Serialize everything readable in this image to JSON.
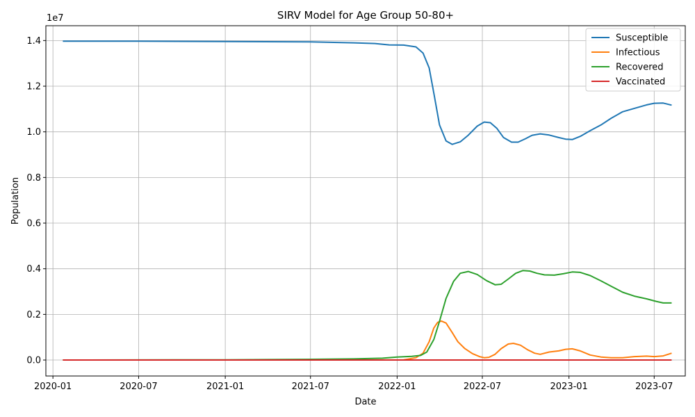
{
  "chart_data": {
    "type": "line",
    "title": "SIRV Model for Age Group 50-80+",
    "xlabel": "Date",
    "ylabel": "Population",
    "y_multiplier": "1e7",
    "xlim": [
      "2019-12-17",
      "2023-09-05"
    ],
    "ylim": [
      -0.07,
      1.465
    ],
    "x_ticks": [
      "2020-01",
      "2020-07",
      "2021-01",
      "2021-07",
      "2022-01",
      "2022-07",
      "2023-01",
      "2023-07"
    ],
    "x_tick_dates": [
      "2020-01-01",
      "2020-07-01",
      "2021-01-01",
      "2021-07-01",
      "2022-01-01",
      "2022-07-01",
      "2023-01-01",
      "2023-07-01"
    ],
    "y_ticks": [
      "0.0",
      "0.2",
      "0.4",
      "0.6",
      "0.8",
      "1.0",
      "1.2",
      "1.4"
    ],
    "y_tick_values": [
      0,
      0.2,
      0.4,
      0.6,
      0.8,
      1.0,
      1.2,
      1.4
    ],
    "grid": true,
    "legend_position": "top-right",
    "series": [
      {
        "name": "Susceptible",
        "color": "#1f77b4",
        "points": [
          [
            "2020-01-22",
            1.397
          ],
          [
            "2020-07-01",
            1.397
          ],
          [
            "2021-01-01",
            1.396
          ],
          [
            "2021-07-01",
            1.394
          ],
          [
            "2021-10-01",
            1.39
          ],
          [
            "2021-11-15",
            1.387
          ],
          [
            "2021-12-15",
            1.381
          ],
          [
            "2022-01-15",
            1.38
          ],
          [
            "2022-02-10",
            1.372
          ],
          [
            "2022-02-25",
            1.345
          ],
          [
            "2022-03-10",
            1.28
          ],
          [
            "2022-03-20",
            1.17
          ],
          [
            "2022-04-01",
            1.03
          ],
          [
            "2022-04-15",
            0.96
          ],
          [
            "2022-04-28",
            0.945
          ],
          [
            "2022-05-15",
            0.956
          ],
          [
            "2022-06-01",
            0.985
          ],
          [
            "2022-06-20",
            1.025
          ],
          [
            "2022-07-05",
            1.043
          ],
          [
            "2022-07-18",
            1.04
          ],
          [
            "2022-08-01",
            1.015
          ],
          [
            "2022-08-15",
            0.975
          ],
          [
            "2022-09-01",
            0.955
          ],
          [
            "2022-09-15",
            0.955
          ],
          [
            "2022-10-01",
            0.97
          ],
          [
            "2022-10-15",
            0.985
          ],
          [
            "2022-11-01",
            0.991
          ],
          [
            "2022-11-20",
            0.986
          ],
          [
            "2022-12-10",
            0.975
          ],
          [
            "2022-12-25",
            0.968
          ],
          [
            "2023-01-08",
            0.966
          ],
          [
            "2023-01-25",
            0.98
          ],
          [
            "2023-02-15",
            1.005
          ],
          [
            "2023-03-10",
            1.03
          ],
          [
            "2023-04-01",
            1.06
          ],
          [
            "2023-04-25",
            1.088
          ],
          [
            "2023-05-20",
            1.103
          ],
          [
            "2023-06-15",
            1.118
          ],
          [
            "2023-07-01",
            1.125
          ],
          [
            "2023-07-20",
            1.126
          ],
          [
            "2023-08-07",
            1.117
          ]
        ]
      },
      {
        "name": "Infectious",
        "color": "#ff7f0e",
        "points": [
          [
            "2020-01-22",
            0.0
          ],
          [
            "2021-07-01",
            0.0
          ],
          [
            "2022-01-15",
            0.001
          ],
          [
            "2022-02-10",
            0.01
          ],
          [
            "2022-02-25",
            0.03
          ],
          [
            "2022-03-10",
            0.08
          ],
          [
            "2022-03-20",
            0.14
          ],
          [
            "2022-03-28",
            0.165
          ],
          [
            "2022-04-05",
            0.171
          ],
          [
            "2022-04-15",
            0.162
          ],
          [
            "2022-04-28",
            0.12
          ],
          [
            "2022-05-10",
            0.08
          ],
          [
            "2022-05-25",
            0.05
          ],
          [
            "2022-06-10",
            0.028
          ],
          [
            "2022-06-25",
            0.015
          ],
          [
            "2022-07-05",
            0.01
          ],
          [
            "2022-07-15",
            0.012
          ],
          [
            "2022-07-28",
            0.025
          ],
          [
            "2022-08-10",
            0.05
          ],
          [
            "2022-08-25",
            0.07
          ],
          [
            "2022-09-05",
            0.073
          ],
          [
            "2022-09-20",
            0.065
          ],
          [
            "2022-10-05",
            0.045
          ],
          [
            "2022-10-20",
            0.03
          ],
          [
            "2022-11-01",
            0.025
          ],
          [
            "2022-11-20",
            0.035
          ],
          [
            "2022-12-10",
            0.04
          ],
          [
            "2022-12-25",
            0.047
          ],
          [
            "2023-01-08",
            0.049
          ],
          [
            "2023-01-25",
            0.04
          ],
          [
            "2023-02-15",
            0.022
          ],
          [
            "2023-03-10",
            0.013
          ],
          [
            "2023-04-01",
            0.01
          ],
          [
            "2023-04-25",
            0.01
          ],
          [
            "2023-05-20",
            0.015
          ],
          [
            "2023-06-15",
            0.017
          ],
          [
            "2023-07-01",
            0.015
          ],
          [
            "2023-07-20",
            0.018
          ],
          [
            "2023-08-07",
            0.03
          ]
        ]
      },
      {
        "name": "Recovered",
        "color": "#2ca02c",
        "points": [
          [
            "2020-01-22",
            0.0
          ],
          [
            "2021-01-01",
            0.001
          ],
          [
            "2021-07-01",
            0.003
          ],
          [
            "2021-10-01",
            0.005
          ],
          [
            "2021-12-01",
            0.008
          ],
          [
            "2022-01-01",
            0.013
          ],
          [
            "2022-02-01",
            0.016
          ],
          [
            "2022-02-20",
            0.02
          ],
          [
            "2022-03-05",
            0.035
          ],
          [
            "2022-03-20",
            0.09
          ],
          [
            "2022-04-01",
            0.17
          ],
          [
            "2022-04-15",
            0.27
          ],
          [
            "2022-05-01",
            0.345
          ],
          [
            "2022-05-15",
            0.38
          ],
          [
            "2022-06-01",
            0.388
          ],
          [
            "2022-06-20",
            0.375
          ],
          [
            "2022-07-10",
            0.348
          ],
          [
            "2022-07-28",
            0.33
          ],
          [
            "2022-08-10",
            0.332
          ],
          [
            "2022-08-25",
            0.355
          ],
          [
            "2022-09-10",
            0.38
          ],
          [
            "2022-09-25",
            0.392
          ],
          [
            "2022-10-10",
            0.39
          ],
          [
            "2022-10-25",
            0.38
          ],
          [
            "2022-11-10",
            0.373
          ],
          [
            "2022-12-01",
            0.372
          ],
          [
            "2022-12-20",
            0.378
          ],
          [
            "2023-01-08",
            0.386
          ],
          [
            "2023-01-25",
            0.384
          ],
          [
            "2023-02-15",
            0.37
          ],
          [
            "2023-03-10",
            0.347
          ],
          [
            "2023-04-01",
            0.323
          ],
          [
            "2023-04-25",
            0.297
          ],
          [
            "2023-05-20",
            0.28
          ],
          [
            "2023-06-15",
            0.268
          ],
          [
            "2023-07-05",
            0.257
          ],
          [
            "2023-07-20",
            0.25
          ],
          [
            "2023-08-07",
            0.25
          ]
        ]
      },
      {
        "name": "Vaccinated",
        "color": "#d62728",
        "points": [
          [
            "2020-01-22",
            0.0
          ],
          [
            "2023-08-07",
            0.0
          ]
        ]
      }
    ]
  }
}
